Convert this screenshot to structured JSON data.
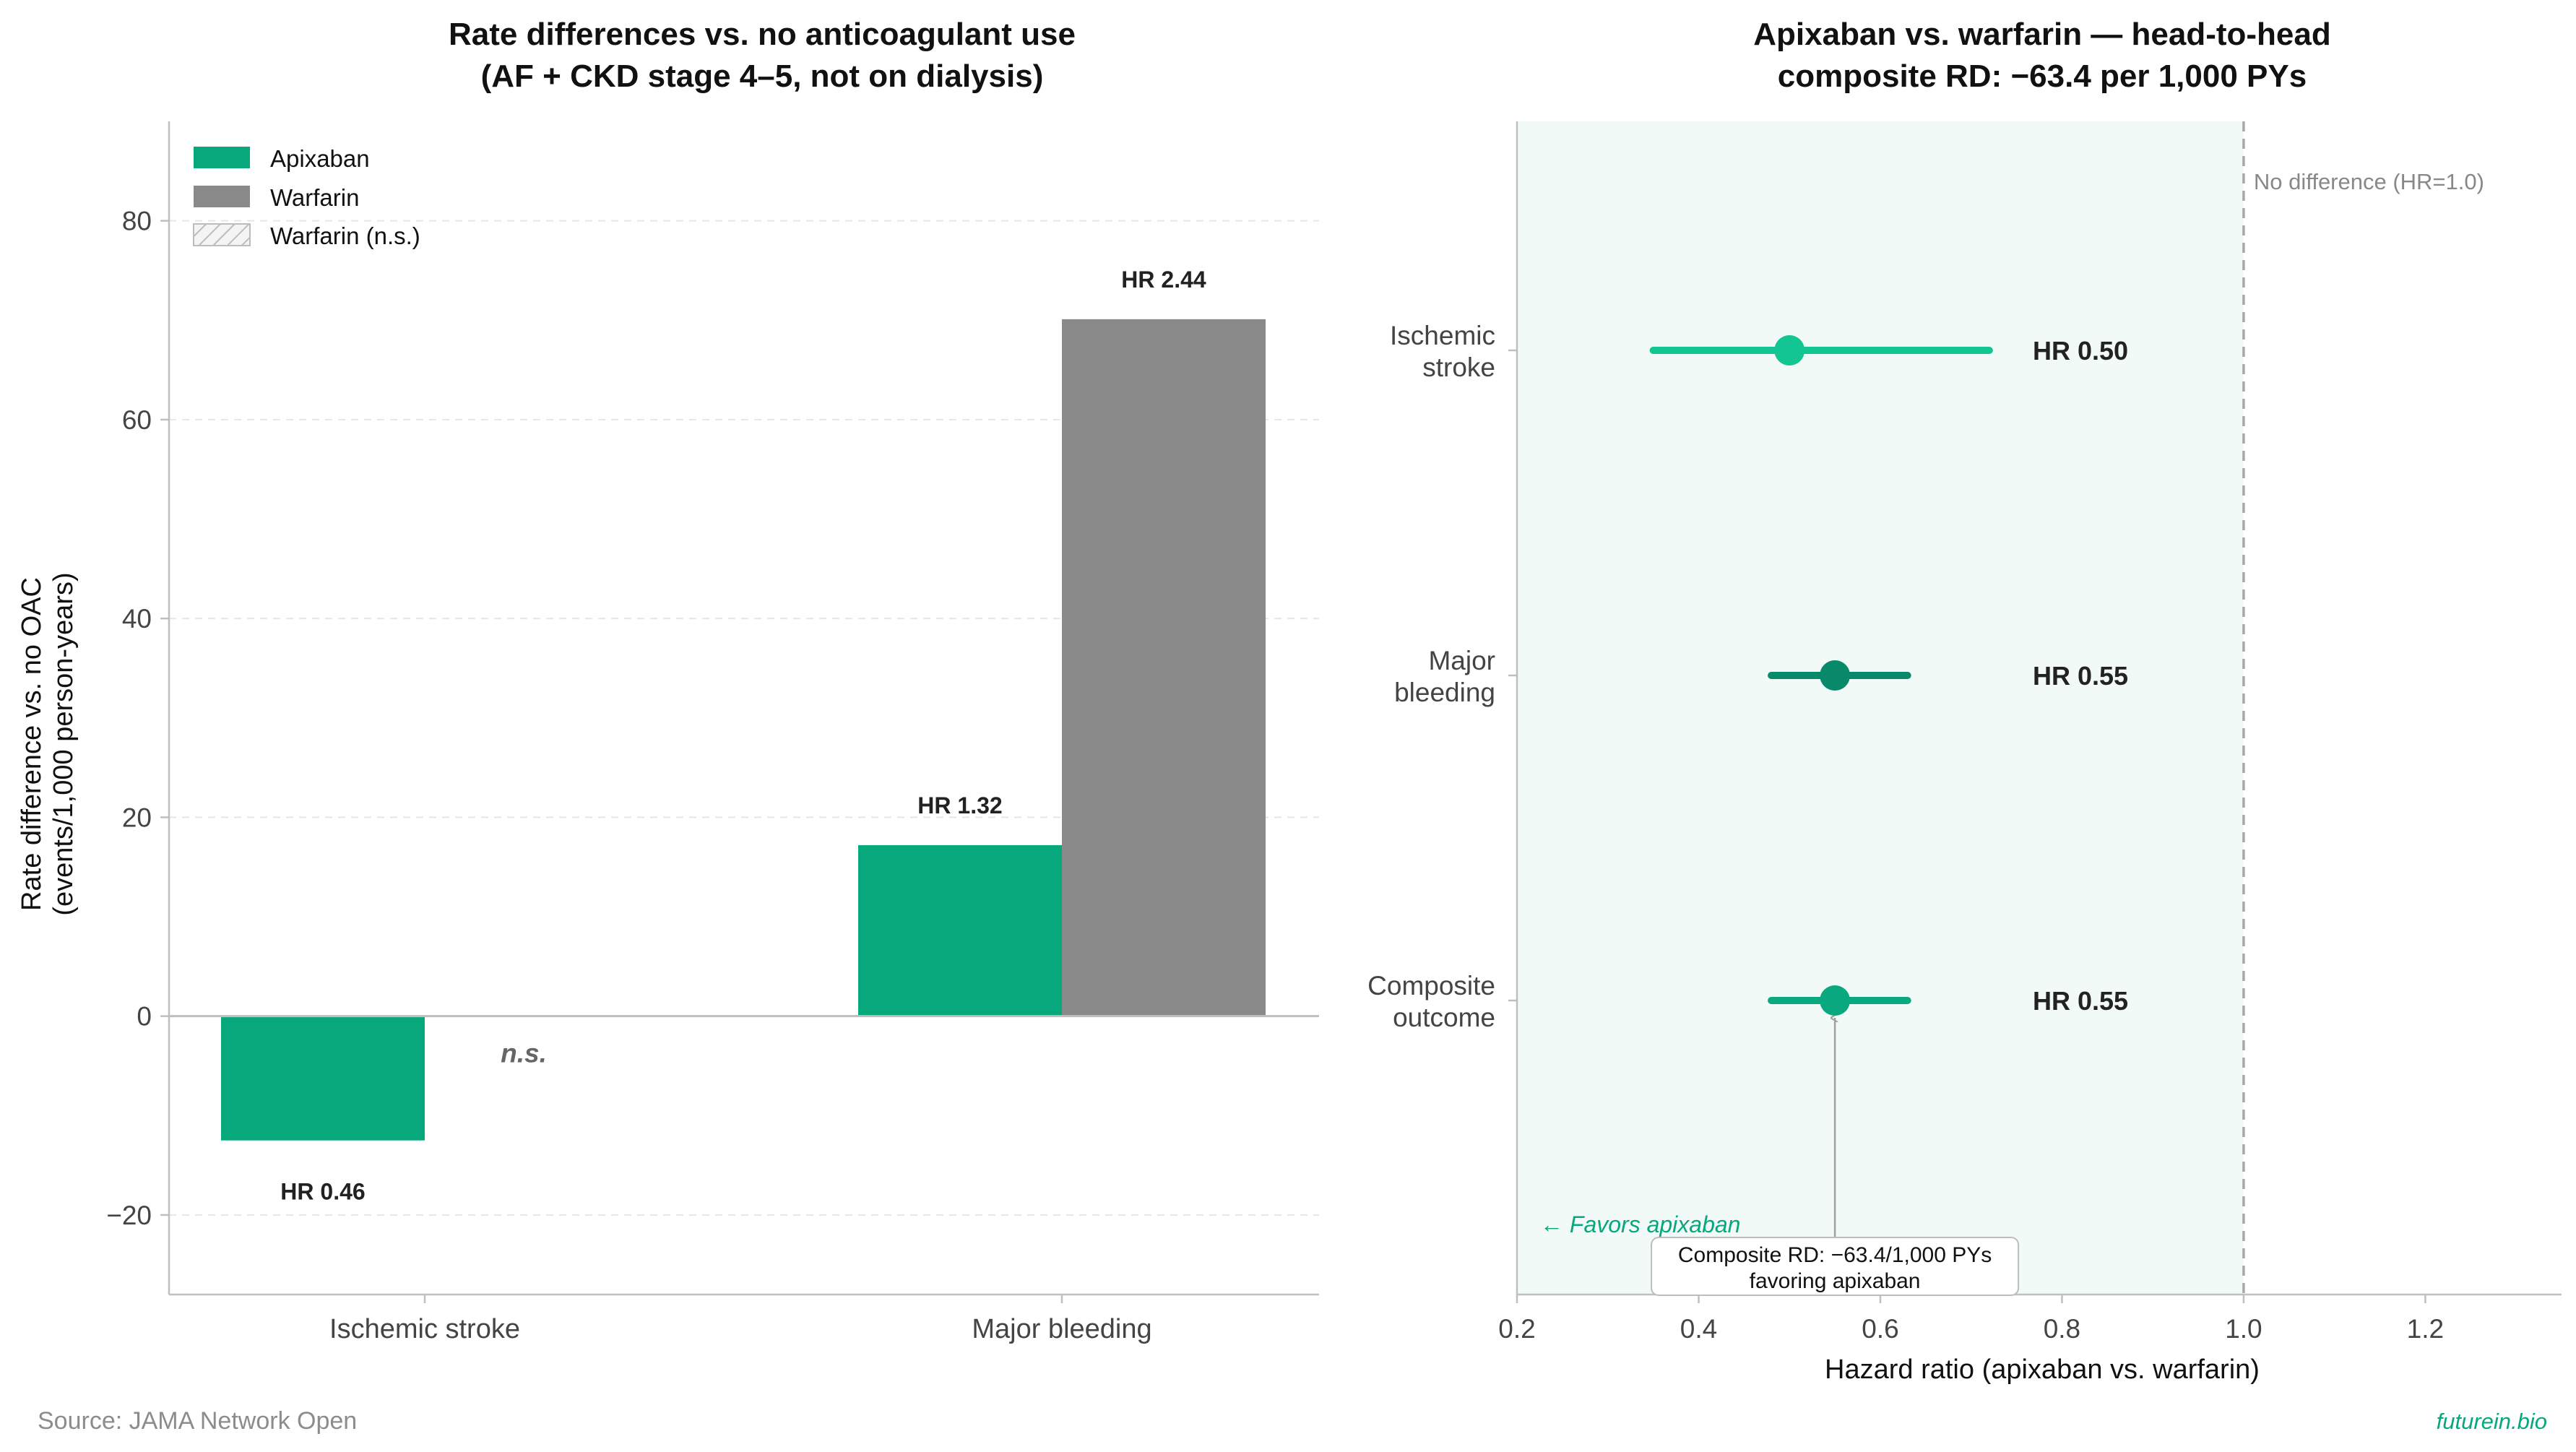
{
  "colors": {
    "apixaban": "#07A87C",
    "warfarin": "#898989",
    "stroke_point": "#13C592",
    "bleeding_point": "#07896A",
    "composite_point": "#0AA87F",
    "favors_region": "#F2FAF7",
    "annotation": "#07A87C",
    "axis": "#BFBFBF",
    "grid": "#E6E6E6",
    "text": "#111111",
    "tick_text": "#444444",
    "muted": "#888888"
  },
  "source": "Source: JAMA Network Open",
  "brand": "futurein.bio",
  "chart_data": [
    {
      "type": "bar",
      "title": "Rate differences vs. no anticoagulant use",
      "subtitle": "(AF + CKD stage 4–5, not on dialysis)",
      "xlabel": "",
      "ylabel_line1": "Rate difference vs. no OAC",
      "ylabel_line2": "(events/1,000 person-years)",
      "ylim": [
        -28,
        90
      ],
      "yticks": [
        -20,
        0,
        20,
        40,
        60,
        80
      ],
      "ytick_labels": [
        "−20",
        "0",
        "20",
        "40",
        "60",
        "80"
      ],
      "grid": true,
      "legend_position": "top-left",
      "legend": [
        "Apixaban",
        "Warfarin",
        "Warfarin (n.s.)"
      ],
      "categories": [
        "Ischemic stroke",
        "Major bleeding"
      ],
      "series": [
        {
          "name": "Apixaban",
          "values": [
            -12.5,
            17.2
          ],
          "labels": [
            "HR 0.46",
            "HR 1.32"
          ]
        },
        {
          "name": "Warfarin",
          "values": [
            0.1,
            70.1
          ],
          "labels": [
            "n.s.",
            "HR 2.44"
          ]
        }
      ]
    },
    {
      "type": "scatter",
      "title": "Apixaban vs. warfarin — head-to-head",
      "subtitle": "composite RD: −63.4 per 1,000 PYs",
      "xlabel": "Hazard ratio (apixaban vs. warfarin)",
      "xlim": [
        0.2,
        1.35
      ],
      "xticks": [
        0.2,
        0.4,
        0.6,
        0.8,
        1.0,
        1.2
      ],
      "xtick_labels": [
        "0.2",
        "0.4",
        "0.6",
        "0.8",
        "1.0",
        "1.2"
      ],
      "reference_line": {
        "x": 1.0,
        "label": "No difference (HR=1.0)"
      },
      "favors_region": {
        "from": 0.2,
        "to": 1.0,
        "label": "← Favors apixaban"
      },
      "categories": [
        {
          "line1": "Ischemic",
          "line2": "stroke"
        },
        {
          "line1": "Major",
          "line2": "bleeding"
        },
        {
          "line1": "Composite",
          "line2": "outcome"
        }
      ],
      "points": [
        {
          "hr": 0.5,
          "ci": [
            0.35,
            0.72
          ],
          "label": "HR 0.50"
        },
        {
          "hr": 0.55,
          "ci": [
            0.48,
            0.63
          ],
          "label": "HR 0.55"
        },
        {
          "hr": 0.55,
          "ci": [
            0.48,
            0.63
          ],
          "label": "HR 0.55"
        }
      ],
      "annotation": {
        "line1": "Composite RD: −63.4/1,000 PYs",
        "line2": "favoring apixaban"
      }
    }
  ]
}
